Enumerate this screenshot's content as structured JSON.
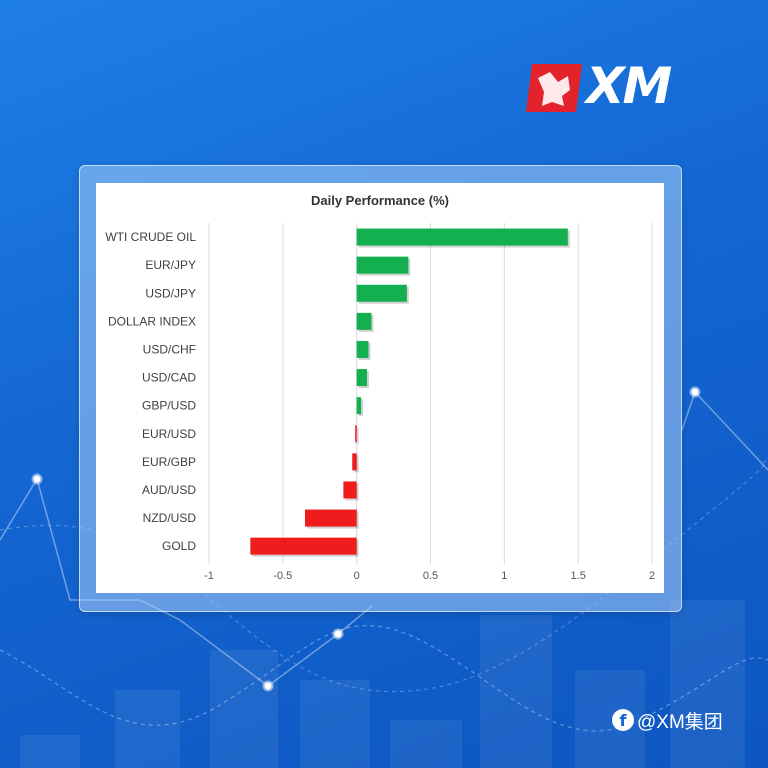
{
  "brand": {
    "logo_text": "XM",
    "logo_accent": "#e3232b"
  },
  "watermark": {
    "icon": "facebook-icon",
    "handle": "@XM集团"
  },
  "colors": {
    "positive": "#14b050",
    "negative": "#ee1c1c",
    "gridline": "#d9d9d9"
  },
  "chart_data": {
    "type": "bar",
    "orientation": "horizontal",
    "title": "Daily Performance (%)",
    "xlabel": "",
    "ylabel": "",
    "categories": [
      "WTI CRUDE OIL",
      "EUR/JPY",
      "USD/JPY",
      "DOLLAR INDEX",
      "USD/CHF",
      "USD/CAD",
      "GBP/USD",
      "EUR/USD",
      "EUR/GBP",
      "AUD/USD",
      "NZD/USD",
      "GOLD"
    ],
    "values": [
      1.43,
      0.35,
      0.34,
      0.1,
      0.08,
      0.07,
      0.03,
      -0.01,
      -0.03,
      -0.09,
      -0.35,
      -0.72
    ],
    "xlim": [
      -1,
      2
    ],
    "xticks": [
      "-1",
      "-0.5",
      "0",
      "0.5",
      "1",
      "1.5",
      "2"
    ],
    "grid": true,
    "legend": "none"
  }
}
